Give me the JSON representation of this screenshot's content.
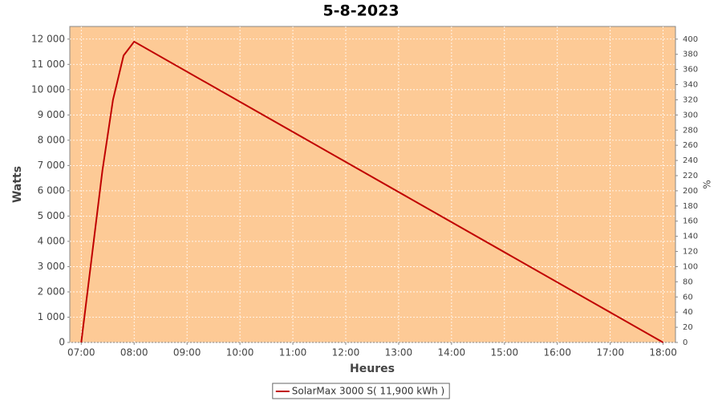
{
  "chart_data": {
    "type": "line",
    "title": "5-8-2023",
    "x_label": "Heures",
    "y_label": "Watts",
    "y2_label": "%",
    "x": [
      "07:00",
      "07:24",
      "07:36",
      "07:48",
      "08:00",
      "18:00"
    ],
    "series": [
      {
        "name": "SolarMax 3000 S( 11,900 kWh )",
        "color": "#c00000",
        "values": [
          0,
          6800,
          9600,
          11350,
          11900,
          0
        ]
      }
    ],
    "xlim": [
      "06:47",
      "18:14"
    ],
    "xticks": [
      "07:00",
      "08:00",
      "09:00",
      "10:00",
      "11:00",
      "12:00",
      "13:00",
      "14:00",
      "15:00",
      "16:00",
      "17:00",
      "18:00"
    ],
    "ylim": [
      0,
      12500
    ],
    "yticks": [
      0,
      {
        "value": 1000,
        "label": "1 000"
      },
      {
        "value": 2000,
        "label": "2 000"
      },
      {
        "value": 3000,
        "label": "3 000"
      },
      {
        "value": 4000,
        "label": "4 000"
      },
      {
        "value": 5000,
        "label": "5 000"
      },
      {
        "value": 6000,
        "label": "6 000"
      },
      {
        "value": 7000,
        "label": "7 000"
      },
      {
        "value": 8000,
        "label": "8 000"
      },
      {
        "value": 9000,
        "label": "9 000"
      },
      {
        "value": 10000,
        "label": "10 000"
      },
      {
        "value": 11000,
        "label": "11 000"
      },
      {
        "value": 12000,
        "label": "12 000"
      }
    ],
    "y2lim": [
      0,
      416.7
    ],
    "y2ticks": [
      0,
      20,
      40,
      60,
      80,
      100,
      120,
      140,
      160,
      180,
      200,
      220,
      240,
      260,
      280,
      300,
      320,
      340,
      360,
      380,
      400
    ],
    "grid": true,
    "plot_background": "#fdca96",
    "legend_position": "bottom"
  }
}
